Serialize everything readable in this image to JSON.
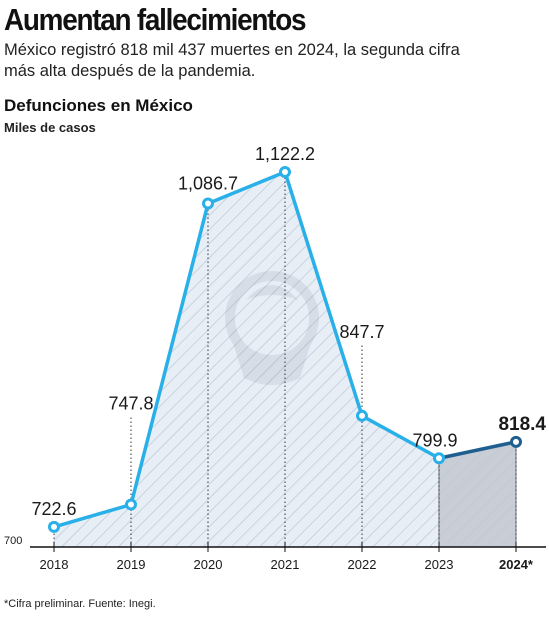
{
  "headline": "Aumentan fallecimientos",
  "deck": "México registró 818 mil 437 muertes en 2024, la segunda cifra más alta después de la pandemia.",
  "footnote": "*Cifra preliminar. Fuente: Inegi.",
  "colors": {
    "line": "#29b0e8",
    "line_preliminary": "#1f5f8f",
    "area_fill": "#e8eef6",
    "area_fill_preliminary": "#c9ced6",
    "hatch": "#b9c7d8",
    "marker_fill": "#ffffff"
  },
  "chart_data": {
    "type": "area",
    "title": "Defunciones en México",
    "subtitle": "Miles de casos",
    "xlabel": "",
    "ylabel": "",
    "categories": [
      "2018",
      "2019",
      "2020",
      "2021",
      "2022",
      "2023",
      "2024*"
    ],
    "values": [
      722.6,
      747.8,
      1086.7,
      1122.2,
      847.7,
      799.9,
      818.4
    ],
    "value_labels": [
      "722.6",
      "747.8",
      "1,086.7",
      "1,122.2",
      "847.7",
      "799.9",
      "818.4"
    ],
    "ylim": [
      700,
      1122.2
    ],
    "y_min_label": "700",
    "preliminary_index": 6,
    "grid": false,
    "legend": "none"
  }
}
